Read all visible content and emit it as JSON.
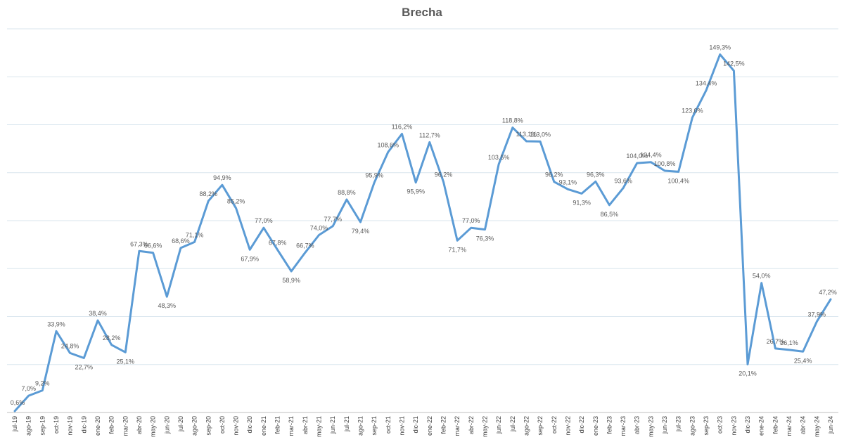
{
  "chart_data": {
    "type": "line",
    "title": "Brecha",
    "xlabel": "",
    "ylabel": "",
    "ylim": [
      0,
      160
    ],
    "grid": true,
    "legend": "none",
    "line_color": "#5b9bd5",
    "categories": [
      "jul-19",
      "ago-19",
      "sep-19",
      "oct-19",
      "nov-19",
      "dic-19",
      "ene-20",
      "feb-20",
      "mar-20",
      "abr-20",
      "may-20",
      "jun-20",
      "jul-20",
      "ago-20",
      "sep-20",
      "oct-20",
      "nov-20",
      "dic-20",
      "ene-21",
      "feb-21",
      "mar-21",
      "abr-21",
      "may-21",
      "jun-21",
      "jul-21",
      "ago-21",
      "sep-21",
      "oct-21",
      "nov-21",
      "dic-21",
      "ene-22",
      "feb-22",
      "mar-22",
      "abr-22",
      "may-22",
      "jun-22",
      "jul-22",
      "ago-22",
      "sep-22",
      "oct-22",
      "nov-22",
      "dic-22",
      "ene-23",
      "feb-23",
      "mar-23",
      "abr-23",
      "may-23",
      "jun-23",
      "jul-23",
      "ago-23",
      "sep-23",
      "oct-23",
      "nov-23",
      "dic-23",
      "ene-24",
      "feb-24",
      "mar-24",
      "abr-24",
      "may-24",
      "jun-24"
    ],
    "values": [
      0.6,
      7.0,
      9.2,
      33.9,
      24.8,
      22.7,
      38.4,
      28.2,
      25.1,
      67.3,
      66.6,
      48.3,
      68.6,
      71.1,
      88.2,
      94.9,
      85.2,
      67.9,
      77.0,
      67.8,
      58.9,
      66.7,
      74.0,
      77.7,
      88.8,
      79.4,
      95.9,
      108.6,
      116.2,
      95.9,
      112.7,
      96.2,
      71.7,
      77.0,
      76.3,
      103.5,
      118.8,
      113.1,
      113.0,
      96.2,
      93.1,
      91.3,
      96.3,
      86.5,
      93.6,
      104.0,
      104.4,
      100.8,
      100.4,
      123.0,
      134.4,
      149.3,
      142.5,
      20.1,
      54.0,
      26.7,
      26.1,
      25.4,
      37.9,
      47.2
    ],
    "labels": [
      "0,6%",
      "7,0%",
      "9,2%",
      "33,9%",
      "24,8%",
      "22,7%",
      "38,4%",
      "28,2%",
      "25,1%",
      "67,3%",
      "66,6%",
      "48,3%",
      "68,6%",
      "71,1%",
      "88,2%",
      "94,9%",
      "85,2%",
      "67,9%",
      "77,0%",
      "67,8%",
      "58,9%",
      "66,7%",
      "74,0%",
      "77,7%",
      "88,8%",
      "79,4%",
      "95,9%",
      "108,6%",
      "116,2%",
      "95,9%",
      "112,7%",
      "96,2%",
      "71,7%",
      "77,0%",
      "76,3%",
      "103,5%",
      "118,8%",
      "113,1%",
      "113,0%",
      "96,2%",
      "93,1%",
      "91,3%",
      "96,3%",
      "86,5%",
      "93,6%",
      "104,0%",
      "104,4%",
      "100,8%",
      "100,4%",
      "123,0%",
      "134,4%",
      "149,3%",
      "142,5%",
      "20,1%",
      "54,0%",
      "26,7%",
      "26,1%",
      "25,4%",
      "37,9%",
      "47,2%"
    ]
  }
}
